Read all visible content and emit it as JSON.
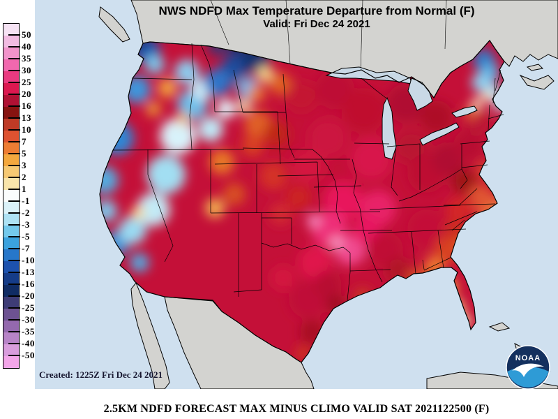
{
  "header": {
    "title": "NWS NDFD Max Temperature Departure from Normal (F)",
    "valid": "Valid: Fri Dec 24 2021"
  },
  "created_note": "Created: 1225Z Fri Dec 24 2021",
  "caption": "2.5KM NDFD FORECAST MAX MINUS CLIMO VALID SAT 2021122500 (F)",
  "noaa": {
    "label": "NOAA"
  },
  "legend": {
    "units": "F",
    "tick_labels": [
      "50",
      "40",
      "35",
      "30",
      "25",
      "20",
      "16",
      "13",
      "10",
      "7",
      "5",
      "3",
      "2",
      "1",
      "-1",
      "-2",
      "-3",
      "-5",
      "-7",
      "-10",
      "-13",
      "-16",
      "-20",
      "-25",
      "-30",
      "-35",
      "-40",
      "-50"
    ],
    "segment_colors": [
      "#F6E3F4",
      "#F2BCE2",
      "#F294CB",
      "#F168AE",
      "#EA3A80",
      "#DC1850",
      "#B01134",
      "#871310",
      "#BE3A26",
      "#DE5230",
      "#EE7D33",
      "#F4A83E",
      "#F6C973",
      "#F9E5AB",
      "#FBFDFD",
      "#DBF2F9",
      "#AEE2F4",
      "#74C9EC",
      "#3BA2DE",
      "#2777CA",
      "#1D52AE",
      "#153C88",
      "#102C64",
      "#3E3C76",
      "#6D5292",
      "#9469AE",
      "#B884C8",
      "#D99DDD",
      "#F3A6E9"
    ]
  },
  "map": {
    "colors": {
      "ocean": "#CFE0EF",
      "land": "#D3D3D0",
      "lakes": "#C9D9E6",
      "us_base": "#C41038",
      "outline": "#000000",
      "logo_dark": "#14305E",
      "logo_light": "#2E9BD6"
    },
    "blobs": [
      [
        160,
        72,
        20,
        "#1E56AE"
      ],
      [
        150,
        62,
        9,
        "#0F2B66"
      ],
      [
        172,
        92,
        14,
        "#7CC8EC"
      ],
      [
        146,
        128,
        20,
        "#3E96DC"
      ],
      [
        118,
        198,
        24,
        "#2E86D4"
      ],
      [
        100,
        258,
        20,
        "#55AADE"
      ],
      [
        102,
        302,
        16,
        "#7EC6EA"
      ],
      [
        118,
        348,
        18,
        "#3E90D4"
      ],
      [
        140,
        330,
        20,
        "#9ADAF2"
      ],
      [
        150,
        376,
        14,
        "#55A8DE"
      ],
      [
        170,
        300,
        24,
        "#C2EAF6"
      ],
      [
        188,
        250,
        28,
        "#A2DEF2"
      ],
      [
        205,
        195,
        26,
        "#D8F2FA"
      ],
      [
        226,
        150,
        22,
        "#6CBCE8"
      ],
      [
        218,
        103,
        18,
        "#8CCCEE"
      ],
      [
        240,
        128,
        16,
        "#CFEFF9"
      ],
      [
        252,
        185,
        18,
        "#BFE9F7"
      ],
      [
        190,
        126,
        14,
        "#F0A040"
      ],
      [
        170,
        156,
        11,
        "#E89038"
      ],
      [
        212,
        170,
        9,
        "#F0B860"
      ],
      [
        148,
        305,
        10,
        "#F4D890"
      ],
      [
        262,
        66,
        14,
        "#3A3474"
      ],
      [
        292,
        70,
        16,
        "#272E6E"
      ],
      [
        318,
        86,
        20,
        "#10306E"
      ],
      [
        284,
        98,
        18,
        "#1C4C9C"
      ],
      [
        262,
        118,
        20,
        "#2E74C8"
      ],
      [
        305,
        126,
        16,
        "#74B4E4"
      ],
      [
        274,
        156,
        14,
        "#E0F2FA"
      ],
      [
        300,
        152,
        10,
        "#F2E0B0"
      ],
      [
        268,
        232,
        18,
        "#E87828"
      ],
      [
        286,
        278,
        16,
        "#D85020"
      ],
      [
        258,
        298,
        14,
        "#F0B050"
      ],
      [
        320,
        178,
        20,
        "#E06028"
      ],
      [
        312,
        208,
        16,
        "#D84020"
      ],
      [
        346,
        192,
        18,
        "#C02818"
      ],
      [
        342,
        252,
        20,
        "#D43028"
      ],
      [
        378,
        282,
        18,
        "#CC2020"
      ],
      [
        352,
        306,
        16,
        "#D22A30"
      ],
      [
        330,
        106,
        12,
        "#F2D488"
      ],
      [
        352,
        120,
        16,
        "#E06020"
      ],
      [
        318,
        134,
        12,
        "#E88030"
      ],
      [
        382,
        138,
        22,
        "#C41430"
      ],
      [
        430,
        128,
        28,
        "#BE0E34"
      ],
      [
        472,
        158,
        32,
        "#C0102E"
      ],
      [
        532,
        148,
        28,
        "#B01030"
      ],
      [
        576,
        168,
        24,
        "#AE1028"
      ],
      [
        420,
        198,
        28,
        "#CC1240"
      ],
      [
        482,
        228,
        30,
        "#D8124C"
      ],
      [
        392,
        238,
        24,
        "#D41840"
      ],
      [
        540,
        210,
        24,
        "#BA1232"
      ],
      [
        442,
        288,
        28,
        "#E8135C"
      ],
      [
        492,
        298,
        26,
        "#E82368"
      ],
      [
        422,
        328,
        26,
        "#EE2E78"
      ],
      [
        452,
        358,
        22,
        "#F04C90"
      ],
      [
        432,
        348,
        9,
        "#F79CC8"
      ],
      [
        400,
        316,
        10,
        "#F586BE"
      ],
      [
        402,
        376,
        24,
        "#E0124C"
      ],
      [
        476,
        330,
        20,
        "#E81860"
      ],
      [
        392,
        428,
        28,
        "#C00E38"
      ],
      [
        420,
        408,
        20,
        "#B81030"
      ],
      [
        398,
        476,
        18,
        "#A81020"
      ],
      [
        432,
        436,
        14,
        "#A01020"
      ],
      [
        384,
        506,
        9,
        "#D04018"
      ],
      [
        356,
        398,
        18,
        "#D41440"
      ],
      [
        502,
        358,
        26,
        "#C01034"
      ],
      [
        522,
        388,
        18,
        "#B01228"
      ],
      [
        546,
        398,
        12,
        "#D85028"
      ],
      [
        562,
        328,
        28,
        "#C41038"
      ],
      [
        592,
        358,
        20,
        "#D84020"
      ],
      [
        620,
        350,
        18,
        "#E06028"
      ],
      [
        602,
        328,
        16,
        "#CC2C20"
      ],
      [
        562,
        248,
        28,
        "#BE1030"
      ],
      [
        592,
        228,
        24,
        "#B01030"
      ],
      [
        622,
        208,
        22,
        "#B81030"
      ],
      [
        636,
        178,
        18,
        "#BC1434"
      ],
      [
        616,
        260,
        18,
        "#9E1218"
      ],
      [
        640,
        282,
        18,
        "#E05430"
      ],
      [
        654,
        312,
        20,
        "#E86838"
      ],
      [
        666,
        294,
        12,
        "#E87840"
      ],
      [
        646,
        243,
        12,
        "#DC4A2C"
      ],
      [
        608,
        300,
        18,
        "#D42828"
      ],
      [
        644,
        86,
        16,
        "#2E7CC8"
      ],
      [
        652,
        104,
        14,
        "#58B0E4"
      ],
      [
        640,
        118,
        14,
        "#8CD0F0"
      ],
      [
        658,
        132,
        12,
        "#AAE0F4"
      ],
      [
        668,
        150,
        10,
        "#BCE6F6"
      ],
      [
        648,
        138,
        8,
        "#F2E2B8"
      ],
      [
        634,
        148,
        8,
        "#F6EECE"
      ],
      [
        626,
        160,
        10,
        "#E06030"
      ],
      [
        572,
        382,
        14,
        "#F08030"
      ],
      [
        592,
        412,
        14,
        "#F0A840"
      ],
      [
        604,
        440,
        12,
        "#F5CC80"
      ],
      [
        616,
        460,
        10,
        "#F8E4AC"
      ],
      [
        470,
        424,
        12,
        "#C83820"
      ],
      [
        560,
        392,
        10,
        "#D85028"
      ]
    ]
  }
}
